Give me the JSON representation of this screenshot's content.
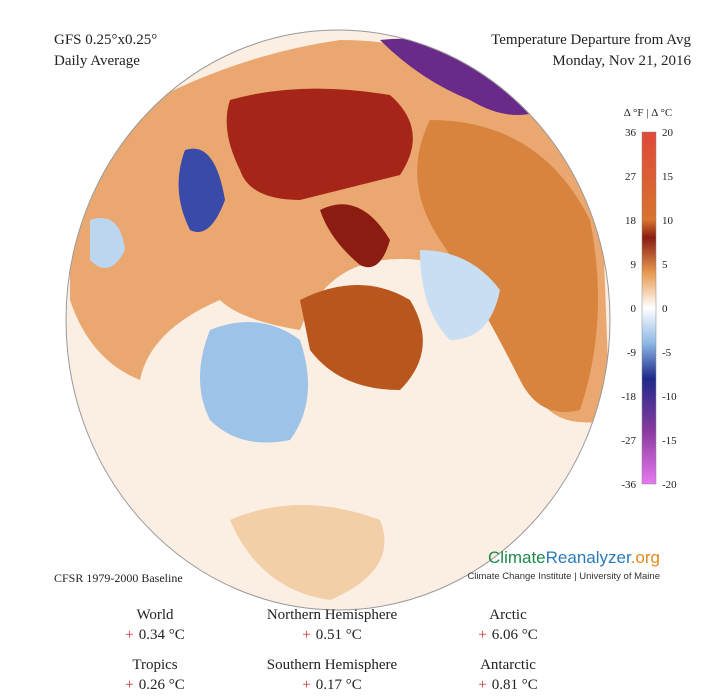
{
  "header": {
    "model": "GFS 0.25°x0.25°",
    "period": "Daily Average",
    "title": "Temperature Departure from Avg",
    "date": "Monday, Nov 21, 2016"
  },
  "legend": {
    "units": "Δ °F | Δ °C",
    "fahrenheit": [
      "36",
      "27",
      "18",
      "9",
      "0",
      "-9",
      "-18",
      "-27",
      "-36"
    ],
    "celsius": [
      "20",
      "15",
      "10",
      "5",
      "0",
      "-5",
      "-10",
      "-15",
      "-20"
    ]
  },
  "baseline": "CFSR 1979-2000 Baseline",
  "brand": {
    "part1": "Climate",
    "part2": "Reanalyzer",
    "part3": ".org",
    "institute": "Climate Change Institute | University of Maine"
  },
  "stats": [
    {
      "region": "World",
      "sign": "+",
      "value": "0.34 °C"
    },
    {
      "region": "Northern Hemisphere",
      "sign": "+",
      "value": "0.51 °C"
    },
    {
      "region": "Arctic",
      "sign": "+",
      "value": "6.06 °C"
    },
    {
      "region": "Tropics",
      "sign": "+",
      "value": "0.26 °C"
    },
    {
      "region": "Southern Hemisphere",
      "sign": "+",
      "value": "0.17 °C"
    },
    {
      "region": "Antarctic",
      "sign": "+",
      "value": "0.81 °C"
    }
  ]
}
